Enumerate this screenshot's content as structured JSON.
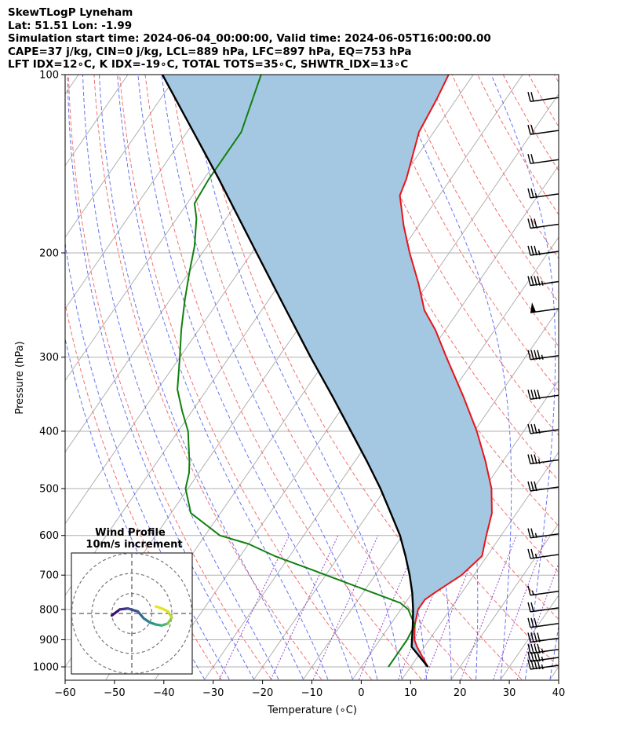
{
  "header": {
    "line1": "SkewTLogP Lyneham",
    "line2": "Lat: 51.51   Lon: -1.99",
    "line3": "Simulation start time: 2024-06-04_00:00:00, Valid time: 2024-06-05T16:00:00.00",
    "line4": "CAPE=37 j/kg, CIN=0 j/kg, LCL=889 hPa, LFC=897 hPa, EQ=753 hPa",
    "line5": "LFT IDX=12∘C, K IDX=-19∘C, TOTAL TOTS=35∘C, SHWTR_IDX=13∘C"
  },
  "chart_data": {
    "type": "line",
    "subtype": "skew-t log-p",
    "xlabel": "Temperature (∘C)",
    "ylabel": "Pressure (hPa)",
    "xlim": [
      -60,
      40
    ],
    "ylim": [
      1050,
      100
    ],
    "yscale": "log",
    "x_ticks": [
      -60,
      -50,
      -40,
      -30,
      -20,
      -10,
      0,
      10,
      20,
      30,
      40
    ],
    "y_ticks": [
      1000,
      900,
      800,
      700,
      600,
      500,
      400,
      300,
      200,
      100
    ],
    "grid": true,
    "colors": {
      "temperature": "#e8141a",
      "dewpoint": "#108010",
      "parcel": "#000000",
      "cape_fill": "#a4c8e1",
      "cin_fill": "#e8a6a0",
      "dry_adiabats": "#f06262",
      "moist_adiabats": "#4c5cf0",
      "mixing_ratio": "#8a35c8",
      "isotherms": "#a9a9a9"
    },
    "series": [
      {
        "name": "Temperature",
        "points": [
          [
            1000,
            13.5
          ],
          [
            925,
            8.5
          ],
          [
            900,
            7.0
          ],
          [
            850,
            5.0
          ],
          [
            800,
            3.5
          ],
          [
            770,
            3.5
          ],
          [
            750,
            4.5
          ],
          [
            700,
            7.5
          ],
          [
            650,
            9.0
          ],
          [
            600,
            7.0
          ],
          [
            550,
            5.0
          ],
          [
            500,
            1.5
          ],
          [
            450,
            -3.5
          ],
          [
            400,
            -9.5
          ],
          [
            350,
            -17.0
          ],
          [
            300,
            -26.0
          ],
          [
            270,
            -32.0
          ],
          [
            250,
            -37.0
          ],
          [
            225,
            -42.0
          ],
          [
            200,
            -48.0
          ],
          [
            180,
            -53.0
          ],
          [
            160,
            -58.0
          ],
          [
            150,
            -59.0
          ],
          [
            125,
            -63.0
          ],
          [
            110,
            -64.0
          ],
          [
            100,
            -65.0
          ]
        ]
      },
      {
        "name": "Dewpoint",
        "points": [
          [
            1000,
            5.5
          ],
          [
            925,
            5.5
          ],
          [
            900,
            5.5
          ],
          [
            850,
            5.0
          ],
          [
            800,
            1.5
          ],
          [
            780,
            -1.0
          ],
          [
            720,
            -15.0
          ],
          [
            680,
            -25.0
          ],
          [
            650,
            -33.0
          ],
          [
            620,
            -40.0
          ],
          [
            600,
            -47.0
          ],
          [
            550,
            -56.0
          ],
          [
            500,
            -60.5
          ],
          [
            470,
            -62.0
          ],
          [
            450,
            -63.5
          ],
          [
            400,
            -68.0
          ],
          [
            370,
            -72.0
          ],
          [
            340,
            -76.0
          ],
          [
            300,
            -80.0
          ],
          [
            270,
            -83.5
          ],
          [
            240,
            -87.0
          ],
          [
            215,
            -90.0
          ],
          [
            195,
            -92.5
          ],
          [
            175,
            -96.0
          ],
          [
            165,
            -98.5
          ],
          [
            150,
            -99.0
          ],
          [
            125,
            -99.0
          ],
          [
            100,
            -103.0
          ]
        ]
      },
      {
        "name": "Parcel",
        "points": [
          [
            1000,
            13.5
          ],
          [
            950,
            9.5
          ],
          [
            925,
            7.4
          ],
          [
            900,
            6.5
          ],
          [
            850,
            4.6
          ],
          [
            800,
            2.5
          ],
          [
            750,
            0.0
          ],
          [
            700,
            -3.0
          ],
          [
            650,
            -6.5
          ],
          [
            600,
            -10.5
          ],
          [
            550,
            -15.5
          ],
          [
            500,
            -21.0
          ],
          [
            450,
            -27.5
          ],
          [
            400,
            -35.0
          ],
          [
            350,
            -43.5
          ],
          [
            300,
            -53.5
          ],
          [
            250,
            -65.0
          ],
          [
            200,
            -79.0
          ],
          [
            150,
            -97.0
          ],
          [
            100,
            -123.0
          ]
        ]
      }
    ],
    "wind_barbs": [
      {
        "p": 1000,
        "speed_kt": 45
      },
      {
        "p": 970,
        "speed_kt": 45
      },
      {
        "p": 940,
        "speed_kt": 45
      },
      {
        "p": 900,
        "speed_kt": 40
      },
      {
        "p": 850,
        "speed_kt": 30
      },
      {
        "p": 800,
        "speed_kt": 20
      },
      {
        "p": 750,
        "speed_kt": 15
      },
      {
        "p": 650,
        "speed_kt": 25
      },
      {
        "p": 600,
        "speed_kt": 25
      },
      {
        "p": 500,
        "speed_kt": 30
      },
      {
        "p": 450,
        "speed_kt": 35
      },
      {
        "p": 400,
        "speed_kt": 35
      },
      {
        "p": 350,
        "speed_kt": 40
      },
      {
        "p": 300,
        "speed_kt": 45
      },
      {
        "p": 250,
        "speed_kt": 50
      },
      {
        "p": 225,
        "speed_kt": 45
      },
      {
        "p": 200,
        "speed_kt": 35
      },
      {
        "p": 180,
        "speed_kt": 30
      },
      {
        "p": 160,
        "speed_kt": 25
      },
      {
        "p": 140,
        "speed_kt": 20
      },
      {
        "p": 125,
        "speed_kt": 20
      },
      {
        "p": 110,
        "speed_kt": 20
      }
    ],
    "inset": {
      "title_line1": "Wind Profile",
      "title_line2": "10m/s increment",
      "type": "hodograph",
      "rings_ms": [
        10,
        20,
        30
      ],
      "hodograph_uv": [
        [
          -10,
          -1
        ],
        [
          -6,
          2
        ],
        [
          -2,
          2.5
        ],
        [
          3,
          1
        ],
        [
          6,
          -2.5
        ],
        [
          9,
          -4.5
        ],
        [
          12,
          -5.5
        ],
        [
          15,
          -6
        ],
        [
          18,
          -5
        ],
        [
          20,
          -2
        ],
        [
          18,
          1
        ],
        [
          15,
          2.5
        ],
        [
          12,
          3.5
        ]
      ]
    }
  }
}
